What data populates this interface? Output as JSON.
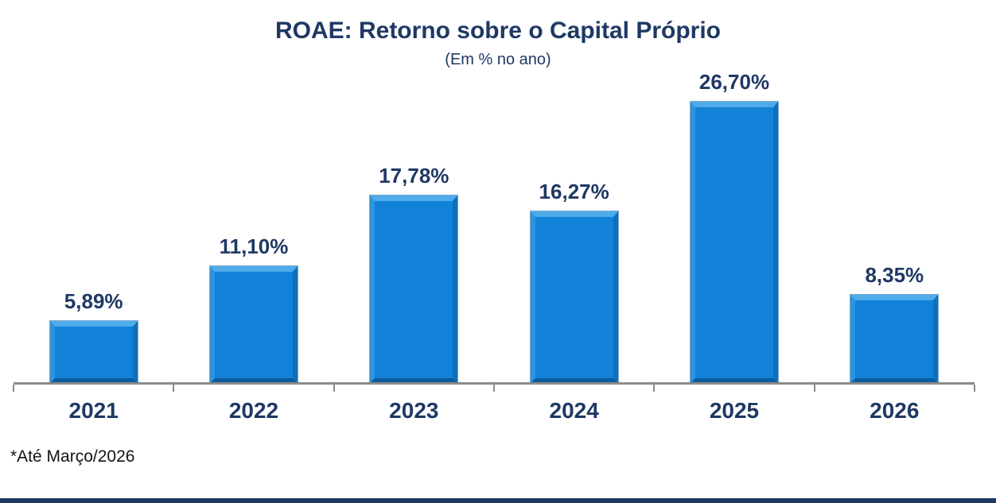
{
  "chart_data": {
    "type": "bar",
    "title": "ROAE: Retorno sobre o Capital Próprio",
    "subtitle": "(Em % no ano)",
    "categories": [
      "2021",
      "2022",
      "2023",
      "2024",
      "2025",
      "2026"
    ],
    "values": [
      5.89,
      11.1,
      17.78,
      16.27,
      26.7,
      8.35
    ],
    "value_labels": [
      "5,89%",
      "11,10%",
      "17,78%",
      "16,27%",
      "26,70%",
      "8,35%"
    ],
    "footnote": "*Até Março/2026",
    "xlabel": "",
    "ylabel": "",
    "ylim": [
      0,
      30
    ],
    "grid": false,
    "legend": false,
    "colors": {
      "bar_face": "#1182D8",
      "bar_bevel_top": "#4FACEA",
      "bar_bevel_bottom": "#0B5C9E",
      "text_navy": "#1F3864",
      "axis_gray": "#8B8B8B",
      "bottom_accent": "#1F3864"
    }
  }
}
